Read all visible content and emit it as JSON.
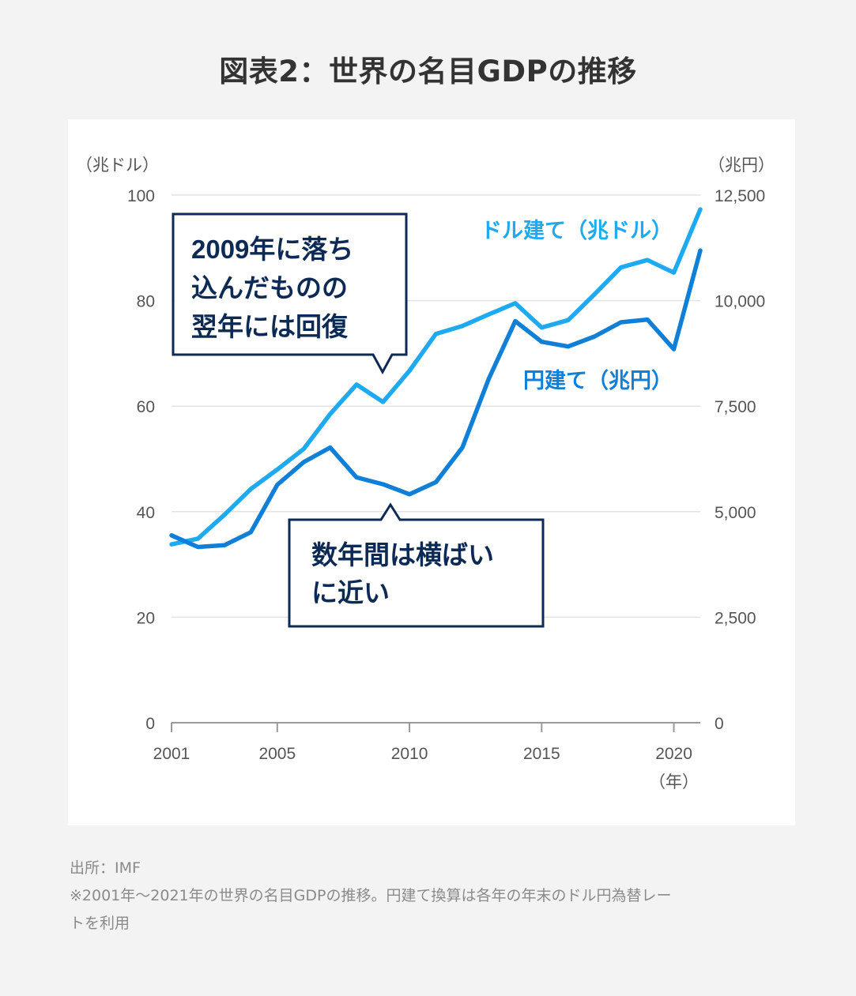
{
  "title": "図表2：世界の名目GDPの推移",
  "chart_data": {
    "type": "line",
    "x": [
      2001,
      2002,
      2003,
      2004,
      2005,
      2006,
      2007,
      2008,
      2009,
      2010,
      2011,
      2012,
      2013,
      2014,
      2015,
      2016,
      2017,
      2018,
      2019,
      2020,
      2021
    ],
    "x_ticks": [
      "2001",
      "2005",
      "2010",
      "2015",
      "2020"
    ],
    "x_unit": "（年）",
    "y_left": {
      "unit": "（兆ドル）",
      "ticks": [
        "0",
        "20",
        "40",
        "60",
        "80",
        "100"
      ],
      "range": [
        0,
        100
      ]
    },
    "y_right": {
      "unit": "（兆円）",
      "ticks": [
        "0",
        "2,500",
        "5,000",
        "7,500",
        "10,000",
        "12,500"
      ],
      "range": [
        0,
        12500
      ]
    },
    "series": [
      {
        "name": "ドル建て（兆ドル）",
        "axis": "left",
        "color": "#1eaaf1",
        "values": [
          33.8,
          34.9,
          39.4,
          44.3,
          48.0,
          51.9,
          58.5,
          64.1,
          60.8,
          66.7,
          73.7,
          75.2,
          77.4,
          79.5,
          74.9,
          76.3,
          81.2,
          86.3,
          87.7,
          85.3,
          97.3
        ]
      },
      {
        "name": "円建て（兆円）",
        "axis": "right",
        "color": "#0f7fd8",
        "values": [
          4438,
          4163,
          4204,
          4513,
          5637,
          6175,
          6520,
          5813,
          5650,
          5412,
          5700,
          6520,
          8150,
          9513,
          9025,
          8913,
          9150,
          9488,
          9550,
          8850,
          11188
        ]
      }
    ],
    "callouts": [
      {
        "id": "recovery",
        "lines": [
          "2009年に落ち",
          "込んだものの",
          "翌年には回復"
        ]
      },
      {
        "id": "flat",
        "lines": [
          "数年間は横ばい",
          "に近い"
        ]
      }
    ]
  },
  "notes": {
    "source": "出所：IMF",
    "footnote_line1": "※2001年～2021年の世界の名目GDPの推移。円建て換算は各年の年末のドル円為替レー",
    "footnote_line2": "トを利用"
  },
  "colors": {
    "background": "#f3f3f3",
    "panel": "#ffffff",
    "grid": "#e3e3e3",
    "axis": "#9a9a9a",
    "tick_text": "#555555",
    "callout_border": "#0d2a55",
    "callout_text": "#0d2a55"
  }
}
